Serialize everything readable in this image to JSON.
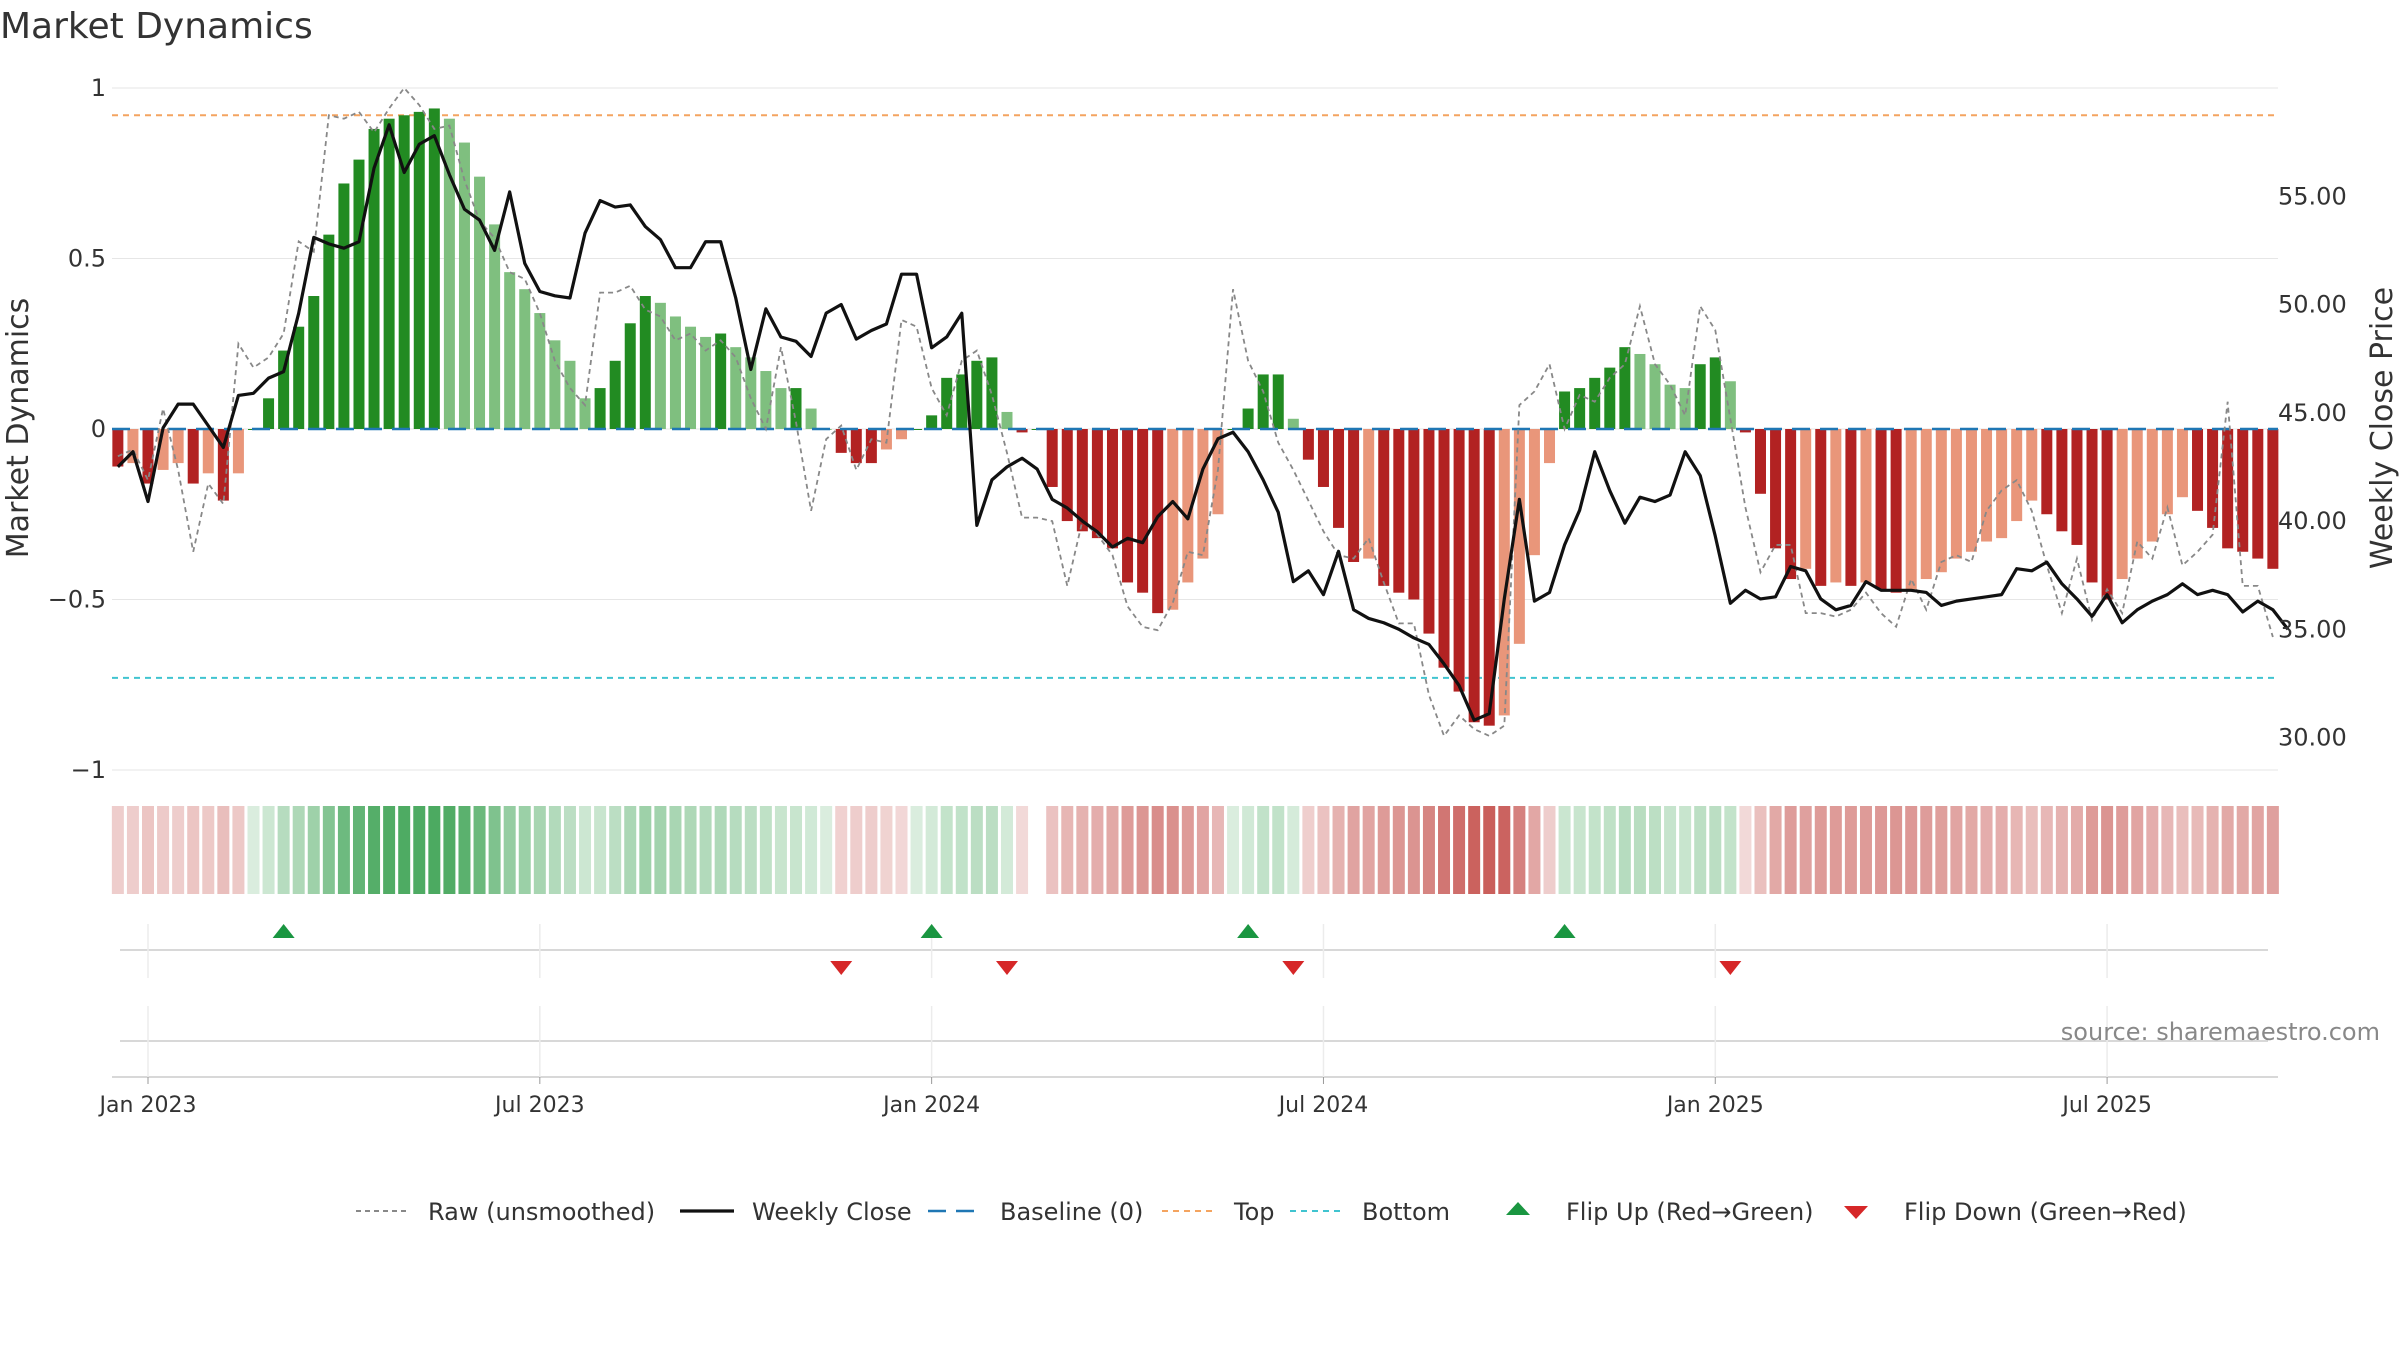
{
  "title": "Market Dynamics",
  "source": "source: sharemaestro.com",
  "colors": {
    "strong_green": "#228b22",
    "light_green": "#7fbf7f",
    "strong_red": "#b22222",
    "light_red": "#e9967a",
    "baseline": "#1f77b4",
    "top": "#f4a460",
    "bottom": "#40c4d0",
    "price": "#111111",
    "raw": "#888888",
    "flip_up": "#1a9641",
    "flip_down": "#d62728"
  },
  "chart_data": {
    "type": "bar",
    "title": "Market Dynamics",
    "ylabel": "Market Dynamics",
    "y2label": "Weekly Close Price",
    "ylim": [
      -1,
      1
    ],
    "y2lim": [
      28.5,
      60
    ],
    "yticks": [
      1,
      0.5,
      0,
      -0.5,
      -1
    ],
    "yticklabels": [
      "1",
      "0.5",
      "0",
      "−0.5",
      "−1"
    ],
    "y2ticks": [
      55,
      50,
      45,
      40,
      35,
      30
    ],
    "y2ticklabels": [
      "55.00",
      "50.00",
      "45.00",
      "40.00",
      "35.00",
      "30.00"
    ],
    "xticks": [
      0,
      26,
      52,
      78,
      104,
      130
    ],
    "xticklabels": [
      "Jan 2023",
      "Jul 2023",
      "Jan 2024",
      "Jul 2024",
      "Jan 2025",
      "Jul 2025"
    ],
    "first_week": "2023-01-02",
    "reference_lines": {
      "baseline": 0,
      "top": 0.92,
      "bottom": -0.73
    },
    "weeks": [
      -2,
      -1,
      0,
      1,
      2,
      3,
      4,
      5,
      6,
      7,
      8,
      9,
      10,
      11,
      12,
      13,
      14,
      15,
      16,
      17,
      18,
      19,
      20,
      21,
      22,
      23,
      24,
      25,
      26,
      27,
      28,
      29,
      30,
      31,
      32,
      33,
      34,
      35,
      36,
      37,
      38,
      39,
      40,
      41,
      42,
      43,
      44,
      45,
      46,
      47,
      48,
      49,
      50,
      51,
      52,
      53,
      54,
      55,
      56,
      57,
      58,
      59,
      60,
      61,
      62,
      63,
      64,
      65,
      66,
      67,
      68,
      69,
      70,
      71,
      72,
      73,
      74,
      75,
      76,
      77,
      78,
      79,
      80,
      81,
      82,
      83,
      84,
      85,
      86,
      87,
      88,
      89,
      90,
      91,
      92,
      93,
      94,
      95,
      96,
      97,
      98,
      99,
      100,
      101,
      102,
      103,
      104,
      105,
      106,
      107,
      108,
      109,
      110,
      111,
      112,
      113,
      114,
      115,
      116,
      117,
      118,
      119,
      120,
      121,
      122,
      123,
      124,
      125,
      126,
      127,
      128,
      129,
      130,
      131,
      132,
      133,
      134,
      135,
      136,
      137,
      138,
      139,
      140,
      141,
      142,
      143
    ],
    "series": [
      {
        "name": "Market Dynamics (smoothed)",
        "values": [
          -0.11,
          -0.1,
          -0.16,
          -0.12,
          -0.1,
          -0.16,
          -0.13,
          -0.21,
          -0.13,
          0,
          0.09,
          0.23,
          0.3,
          0.39,
          0.57,
          0.72,
          0.79,
          0.88,
          0.91,
          0.92,
          0.93,
          0.94,
          0.91,
          0.84,
          0.74,
          0.6,
          0.46,
          0.41,
          0.34,
          0.26,
          0.2,
          0.09,
          0.12,
          0.2,
          0.31,
          0.39,
          0.37,
          0.33,
          0.3,
          0.27,
          0.28,
          0.24,
          0.21,
          0.17,
          0.12,
          0.12,
          0.06,
          0,
          -0.07,
          -0.1,
          -0.1,
          -0.06,
          -0.03,
          0,
          0.04,
          0.15,
          0.16,
          0.2,
          0.21,
          0.05,
          -0.01,
          0,
          -0.17,
          -0.27,
          -0.3,
          -0.32,
          -0.35,
          -0.45,
          -0.48,
          -0.54,
          -0.53,
          -0.45,
          -0.38,
          -0.25,
          0,
          0.06,
          0.16,
          0.16,
          0.03,
          -0.09,
          -0.17,
          -0.29,
          -0.39,
          -0.38,
          -0.46,
          -0.48,
          -0.5,
          -0.6,
          -0.7,
          -0.77,
          -0.86,
          -0.87,
          -0.84,
          -0.63,
          -0.37,
          -0.1,
          0.11,
          0.12,
          0.15,
          0.18,
          0.24,
          0.22,
          0.19,
          0.13,
          0.12,
          0.19,
          0.21,
          0.14,
          -0.01,
          -0.19,
          -0.35,
          -0.44,
          -0.41,
          -0.46,
          -0.45,
          -0.46,
          -0.45,
          -0.47,
          -0.48,
          -0.47,
          -0.44,
          -0.42,
          -0.38,
          -0.36,
          -0.33,
          -0.32,
          -0.27,
          -0.21,
          -0.25,
          -0.3,
          -0.34,
          -0.45,
          -0.5,
          -0.44,
          -0.38,
          -0.33,
          -0.25,
          -0.2,
          -0.24,
          -0.29,
          -0.35,
          -0.36,
          -0.38,
          -0.41
        ]
      },
      {
        "name": "Raw (unsmoothed)",
        "values": [
          -0.08,
          -0.06,
          -0.15,
          0.06,
          -0.12,
          -0.36,
          -0.16,
          -0.22,
          0.25,
          0.18,
          0.21,
          0.28,
          0.55,
          0.52,
          0.92,
          0.91,
          0.93,
          0.87,
          0.94,
          1,
          0.95,
          0.88,
          0.89,
          0.73,
          0.61,
          0.56,
          0.46,
          0.44,
          0.34,
          0.2,
          0.12,
          0.07,
          0.4,
          0.4,
          0.42,
          0.35,
          0.33,
          0.26,
          0.28,
          0.23,
          0.26,
          0.21,
          0.09,
          0,
          0.24,
          0.02,
          -0.24,
          -0.03,
          0.01,
          -0.12,
          -0.03,
          -0.04,
          0.32,
          0.3,
          0.12,
          0.04,
          0.2,
          0.23,
          0.1,
          -0.07,
          -0.26,
          -0.26,
          -0.27,
          -0.46,
          -0.27,
          -0.31,
          -0.37,
          -0.52,
          -0.58,
          -0.59,
          -0.51,
          -0.36,
          -0.37,
          -0.12,
          0.41,
          0.2,
          0.11,
          -0.04,
          -0.12,
          -0.21,
          -0.3,
          -0.37,
          -0.38,
          -0.32,
          -0.45,
          -0.57,
          -0.57,
          -0.78,
          -0.9,
          -0.84,
          -0.88,
          -0.9,
          -0.87,
          0.07,
          0.11,
          0.19,
          0,
          0.1,
          0.08,
          0.15,
          0.19,
          0.36,
          0.19,
          0.13,
          0.04,
          0.36,
          0.29,
          0.03,
          -0.23,
          -0.42,
          -0.34,
          -0.34,
          -0.54,
          -0.54,
          -0.55,
          -0.53,
          -0.48,
          -0.54,
          -0.58,
          -0.44,
          -0.53,
          -0.39,
          -0.37,
          -0.39,
          -0.24,
          -0.18,
          -0.15,
          -0.24,
          -0.4,
          -0.54,
          -0.38,
          -0.56,
          -0.47,
          -0.54,
          -0.33,
          -0.38,
          -0.23,
          -0.4,
          -0.36,
          -0.31,
          0.08,
          -0.46,
          -0.46,
          -0.61
        ]
      },
      {
        "name": "Weekly Close",
        "values": [
          42.5,
          43.2,
          40.9,
          44.3,
          45.4,
          45.4,
          44.4,
          43.4,
          45.8,
          45.9,
          46.6,
          46.9,
          49.6,
          53.1,
          52.8,
          52.6,
          52.9,
          56.3,
          58.3,
          56.1,
          57.4,
          57.8,
          56.0,
          54.4,
          53.9,
          52.5,
          55.2,
          51.9,
          50.6,
          50.4,
          50.3,
          53.3,
          54.8,
          54.5,
          54.6,
          53.6,
          53.0,
          51.7,
          51.7,
          52.9,
          52.9,
          50.3,
          47.0,
          49.8,
          48.5,
          48.3,
          47.6,
          49.6,
          50.0,
          48.4,
          48.8,
          49.1,
          51.4,
          51.4,
          48.0,
          48.5,
          49.6,
          39.8,
          41.9,
          42.5,
          42.9,
          42.4,
          41.0,
          40.6,
          40.0,
          39.5,
          38.8,
          39.2,
          39.0,
          40.2,
          40.9,
          40.1,
          42.4,
          43.8,
          44.1,
          43.2,
          41.9,
          40.4,
          37.2,
          37.7,
          36.6,
          38.6,
          35.9,
          35.5,
          35.3,
          35.0,
          34.6,
          34.3,
          33.4,
          32.4,
          30.8,
          31.1,
          36.4,
          41.0,
          36.3,
          36.7,
          38.9,
          40.5,
          43.2,
          41.4,
          39.9,
          41.1,
          40.9,
          41.2,
          43.2,
          42.1,
          39.3,
          36.2,
          36.8,
          36.4,
          36.5,
          37.9,
          37.7,
          36.4,
          35.9,
          36.1,
          37.2,
          36.8,
          36.8,
          36.8,
          36.7,
          36.1,
          36.3,
          36.4,
          36.5,
          36.6,
          37.8,
          37.7,
          38.1,
          37.1,
          36.4,
          35.6,
          36.6,
          35.3,
          35.9,
          36.3,
          36.6,
          37.1,
          36.6,
          36.8,
          36.6,
          35.8,
          36.3,
          35.9,
          35.0
        ]
      }
    ],
    "flip_up_weeks": [
      9,
      52,
      73,
      94
    ],
    "flip_down_weeks": [
      46,
      57,
      76,
      105
    ],
    "missing_weeks": [
      59
    ]
  },
  "legend": [
    {
      "key": "raw",
      "label": "Raw (unsmoothed)"
    },
    {
      "key": "close",
      "label": "Weekly Close"
    },
    {
      "key": "baseline",
      "label": "Baseline (0)"
    },
    {
      "key": "top",
      "label": "Top"
    },
    {
      "key": "bottom",
      "label": "Bottom"
    },
    {
      "key": "flip_up",
      "label": "Flip Up (Red→Green)"
    },
    {
      "key": "flip_down",
      "label": "Flip Down (Green→Red)"
    }
  ]
}
